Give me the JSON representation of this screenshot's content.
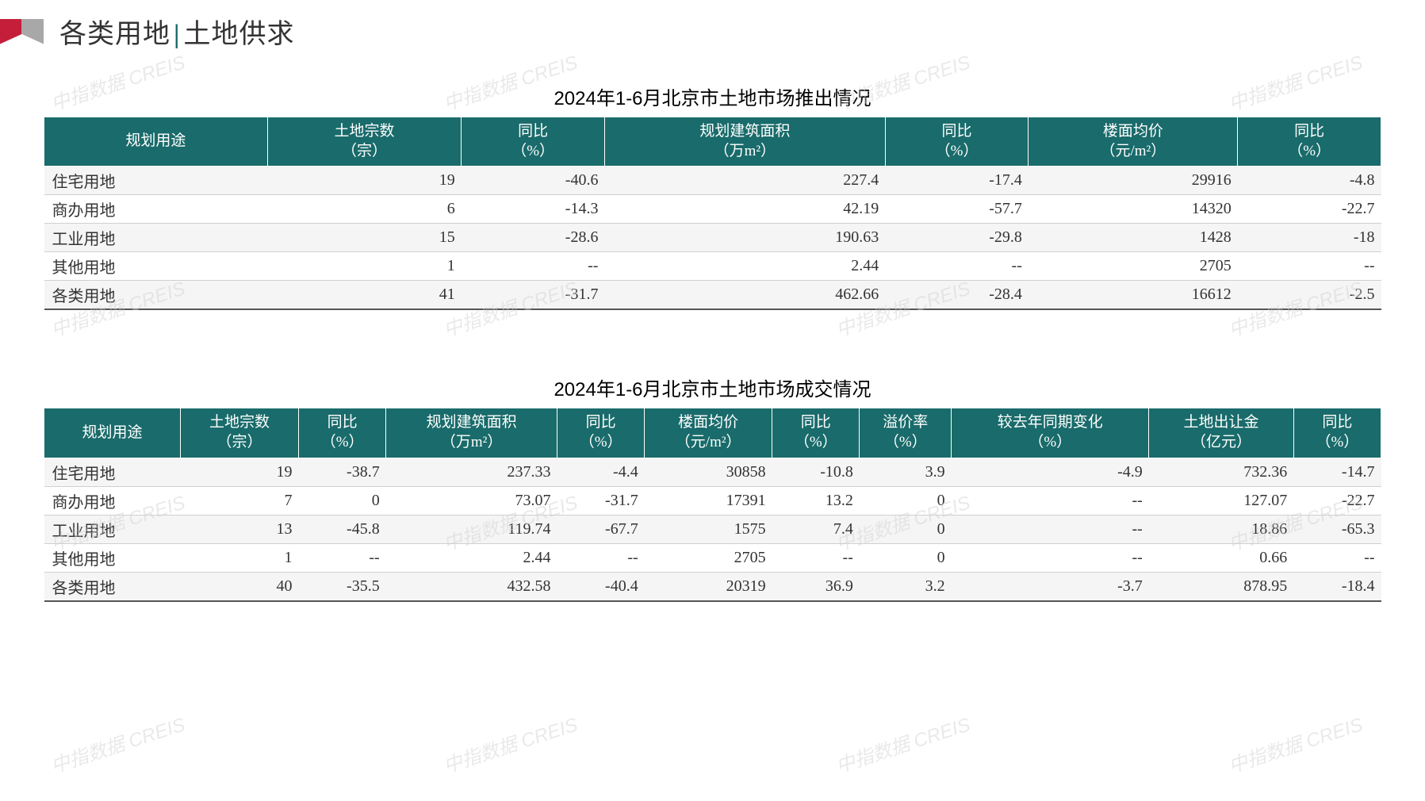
{
  "header": {
    "title_left": "各类用地",
    "title_right": "土地供求"
  },
  "colors": {
    "header_bg": "#1a6b6b",
    "header_fg": "#ffffff",
    "row_odd_bg": "#f5f5f5",
    "row_even_bg": "#ffffff",
    "logo_red": "#c41e3a",
    "logo_gray": "#a8a8a8",
    "text": "#333333"
  },
  "watermark_text": "中指数据 CREIS",
  "table1": {
    "title": "2024年1-6月北京市土地市场推出情况",
    "columns": [
      {
        "line1": "规划用途",
        "line2": ""
      },
      {
        "line1": "土地宗数",
        "line2": "（宗）"
      },
      {
        "line1": "同比",
        "line2": "（%）"
      },
      {
        "line1": "规划建筑面积",
        "line2": "（万m²）"
      },
      {
        "line1": "同比",
        "line2": "（%）"
      },
      {
        "line1": "楼面均价",
        "line2": "（元/m²）"
      },
      {
        "line1": "同比",
        "line2": "（%）"
      }
    ],
    "rows": [
      [
        "住宅用地",
        "19",
        "-40.6",
        "227.4",
        "-17.4",
        "29916",
        "-4.8"
      ],
      [
        "商办用地",
        "6",
        "-14.3",
        "42.19",
        "-57.7",
        "14320",
        "-22.7"
      ],
      [
        "工业用地",
        "15",
        "-28.6",
        "190.63",
        "-29.8",
        "1428",
        "-18"
      ],
      [
        "其他用地",
        "1",
        "--",
        "2.44",
        "--",
        "2705",
        "--"
      ],
      [
        "各类用地",
        "41",
        "-31.7",
        "462.66",
        "-28.4",
        "16612",
        "-2.5"
      ]
    ]
  },
  "table2": {
    "title": "2024年1-6月北京市土地市场成交情况",
    "columns": [
      {
        "line1": "规划用途",
        "line2": ""
      },
      {
        "line1": "土地宗数",
        "line2": "（宗）"
      },
      {
        "line1": "同比",
        "line2": "（%）"
      },
      {
        "line1": "规划建筑面积",
        "line2": "（万m²）"
      },
      {
        "line1": "同比",
        "line2": "（%）"
      },
      {
        "line1": "楼面均价",
        "line2": "（元/m²）"
      },
      {
        "line1": "同比",
        "line2": "（%）"
      },
      {
        "line1": "溢价率",
        "line2": "（%）"
      },
      {
        "line1": "较去年同期变化",
        "line2": "（%）"
      },
      {
        "line1": "土地出让金",
        "line2": "（亿元）"
      },
      {
        "line1": "同比",
        "line2": "（%）"
      }
    ],
    "rows": [
      [
        "住宅用地",
        "19",
        "-38.7",
        "237.33",
        "-4.4",
        "30858",
        "-10.8",
        "3.9",
        "-4.9",
        "732.36",
        "-14.7"
      ],
      [
        "商办用地",
        "7",
        "0",
        "73.07",
        "-31.7",
        "17391",
        "13.2",
        "0",
        "--",
        "127.07",
        "-22.7"
      ],
      [
        "工业用地",
        "13",
        "-45.8",
        "119.74",
        "-67.7",
        "1575",
        "7.4",
        "0",
        "--",
        "18.86",
        "-65.3"
      ],
      [
        "其他用地",
        "1",
        "--",
        "2.44",
        "--",
        "2705",
        "--",
        "0",
        "--",
        "0.66",
        "--"
      ],
      [
        "各类用地",
        "40",
        "-35.5",
        "432.58",
        "-40.4",
        "20319",
        "36.9",
        "3.2",
        "-3.7",
        "878.95",
        "-18.4"
      ]
    ]
  }
}
